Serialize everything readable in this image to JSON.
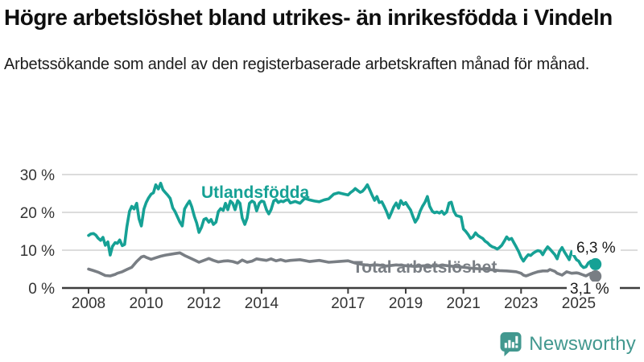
{
  "header": {
    "title": "Högre arbetslöshet bland utrikes- än inrikesfödda i Vindeln",
    "subtitle": "Arbetssökande som andel av den registerbaserade arbetskraften månad för månad."
  },
  "colors": {
    "foreign_born_line": "#16a195",
    "total_line": "#797e84",
    "gridline": "#dcdcdc",
    "axis": "#3d3d3d",
    "end_label_text": "#1a1a1a",
    "brand_teal": "#42988f"
  },
  "chart_data": {
    "type": "line",
    "title": "",
    "xlabel": "",
    "ylabel": "",
    "unit": "%",
    "grid": "horizontal",
    "legend": "inline-labels",
    "ylim": [
      0,
      30
    ],
    "y_axis": {
      "tick_values": [
        0,
        10,
        20,
        30
      ],
      "tick_labels": [
        "0 %",
        "10 %",
        "20 %",
        "30 %"
      ]
    },
    "x_axis": {
      "tick_years": [
        2008,
        2010,
        2012,
        2014,
        2017,
        2019,
        2021,
        2023,
        2025
      ],
      "tick_labels": [
        "2008",
        "2010",
        "2012",
        "2014",
        "2017",
        "2019",
        "2021",
        "2023",
        "2025"
      ],
      "data_start": 2008.0,
      "data_end": 2025.58
    },
    "series": [
      {
        "name": "Utlandsfödda",
        "color": "#16a195",
        "end_label": "6,3 %",
        "end_value": 6.3,
        "points": [
          [
            2008.0,
            13.9
          ],
          [
            2008.08,
            14.3
          ],
          [
            2008.17,
            14.4
          ],
          [
            2008.25,
            14.0
          ],
          [
            2008.33,
            13.2
          ],
          [
            2008.42,
            12.6
          ],
          [
            2008.5,
            13.4
          ],
          [
            2008.58,
            11.3
          ],
          [
            2008.67,
            12.2
          ],
          [
            2008.75,
            8.7
          ],
          [
            2008.83,
            11.0
          ],
          [
            2008.92,
            12.0
          ],
          [
            2009.0,
            11.8
          ],
          [
            2009.08,
            12.7
          ],
          [
            2009.17,
            11.2
          ],
          [
            2009.25,
            11.5
          ],
          [
            2009.33,
            16.2
          ],
          [
            2009.42,
            20.3
          ],
          [
            2009.5,
            21.6
          ],
          [
            2009.58,
            20.9
          ],
          [
            2009.67,
            22.4
          ],
          [
            2009.75,
            18.3
          ],
          [
            2009.83,
            16.4
          ],
          [
            2009.92,
            20.9
          ],
          [
            2010.0,
            22.6
          ],
          [
            2010.08,
            23.8
          ],
          [
            2010.17,
            24.8
          ],
          [
            2010.25,
            25.2
          ],
          [
            2010.33,
            27.3
          ],
          [
            2010.42,
            26.2
          ],
          [
            2010.5,
            27.7
          ],
          [
            2010.58,
            26.0
          ],
          [
            2010.67,
            25.2
          ],
          [
            2010.75,
            24.5
          ],
          [
            2010.83,
            23.7
          ],
          [
            2010.92,
            21.2
          ],
          [
            2011.0,
            20.2
          ],
          [
            2011.08,
            18.9
          ],
          [
            2011.17,
            17.4
          ],
          [
            2011.25,
            16.4
          ],
          [
            2011.33,
            20.9
          ],
          [
            2011.42,
            22.1
          ],
          [
            2011.5,
            23.0
          ],
          [
            2011.58,
            21.5
          ],
          [
            2011.67,
            18.9
          ],
          [
            2011.75,
            17.2
          ],
          [
            2011.83,
            14.7
          ],
          [
            2011.92,
            16.1
          ],
          [
            2012.0,
            18.1
          ],
          [
            2012.08,
            18.4
          ],
          [
            2012.17,
            17.4
          ],
          [
            2012.25,
            18.1
          ],
          [
            2012.33,
            16.8
          ],
          [
            2012.42,
            17.4
          ],
          [
            2012.5,
            20.2
          ],
          [
            2012.58,
            21.0
          ],
          [
            2012.67,
            20.5
          ],
          [
            2012.75,
            22.4
          ],
          [
            2012.83,
            20.7
          ],
          [
            2012.92,
            23.0
          ],
          [
            2013.0,
            22.4
          ],
          [
            2013.08,
            20.7
          ],
          [
            2013.17,
            23.1
          ],
          [
            2013.25,
            22.4
          ],
          [
            2013.33,
            18.5
          ],
          [
            2013.42,
            16.8
          ],
          [
            2013.5,
            18.5
          ],
          [
            2013.58,
            22.4
          ],
          [
            2013.67,
            23.0
          ],
          [
            2013.75,
            22.6
          ],
          [
            2013.83,
            20.4
          ],
          [
            2013.92,
            22.4
          ],
          [
            2014.0,
            23.0
          ],
          [
            2014.08,
            22.8
          ],
          [
            2014.17,
            20.7
          ],
          [
            2014.25,
            19.6
          ],
          [
            2014.33,
            20.7
          ],
          [
            2014.42,
            23.0
          ],
          [
            2014.5,
            23.4
          ],
          [
            2014.58,
            22.6
          ],
          [
            2014.67,
            23.0
          ],
          [
            2014.75,
            22.8
          ],
          [
            2014.83,
            23.2
          ],
          [
            2014.92,
            23.4
          ],
          [
            2015.0,
            22.5
          ],
          [
            2015.17,
            22.9
          ],
          [
            2015.33,
            22.4
          ],
          [
            2015.5,
            23.7
          ],
          [
            2015.67,
            23.3
          ],
          [
            2015.83,
            23.0
          ],
          [
            2016.0,
            22.8
          ],
          [
            2016.17,
            23.3
          ],
          [
            2016.33,
            23.6
          ],
          [
            2016.5,
            24.8
          ],
          [
            2016.67,
            25.2
          ],
          [
            2016.83,
            24.9
          ],
          [
            2017.0,
            24.6
          ],
          [
            2017.08,
            25.2
          ],
          [
            2017.17,
            25.7
          ],
          [
            2017.25,
            26.3
          ],
          [
            2017.33,
            25.8
          ],
          [
            2017.42,
            25.3
          ],
          [
            2017.5,
            25.6
          ],
          [
            2017.58,
            26.3
          ],
          [
            2017.67,
            27.3
          ],
          [
            2017.75,
            26.0
          ],
          [
            2017.83,
            24.6
          ],
          [
            2017.92,
            23.2
          ],
          [
            2018.0,
            24.2
          ],
          [
            2018.08,
            22.6
          ],
          [
            2018.17,
            22.8
          ],
          [
            2018.25,
            21.6
          ],
          [
            2018.33,
            20.3
          ],
          [
            2018.42,
            18.5
          ],
          [
            2018.5,
            19.9
          ],
          [
            2018.58,
            21.4
          ],
          [
            2018.67,
            22.5
          ],
          [
            2018.75,
            21.1
          ],
          [
            2018.83,
            23.1
          ],
          [
            2018.92,
            22.1
          ],
          [
            2019.0,
            22.6
          ],
          [
            2019.08,
            21.6
          ],
          [
            2019.17,
            20.6
          ],
          [
            2019.25,
            18.9
          ],
          [
            2019.33,
            17.4
          ],
          [
            2019.42,
            18.5
          ],
          [
            2019.5,
            20.3
          ],
          [
            2019.58,
            21.6
          ],
          [
            2019.67,
            22.7
          ],
          [
            2019.75,
            24.2
          ],
          [
            2019.83,
            21.6
          ],
          [
            2019.92,
            20.3
          ],
          [
            2020.0,
            19.9
          ],
          [
            2020.08,
            20.1
          ],
          [
            2020.17,
            19.8
          ],
          [
            2020.25,
            20.3
          ],
          [
            2020.33,
            19.5
          ],
          [
            2020.42,
            20.1
          ],
          [
            2020.5,
            22.5
          ],
          [
            2020.58,
            22.7
          ],
          [
            2020.67,
            20.3
          ],
          [
            2020.75,
            19.2
          ],
          [
            2020.83,
            19.0
          ],
          [
            2020.92,
            18.8
          ],
          [
            2021.0,
            15.6
          ],
          [
            2021.08,
            15.0
          ],
          [
            2021.17,
            14.1
          ],
          [
            2021.25,
            13.1
          ],
          [
            2021.33,
            13.5
          ],
          [
            2021.42,
            14.6
          ],
          [
            2021.5,
            13.9
          ],
          [
            2021.58,
            13.5
          ],
          [
            2021.67,
            13.1
          ],
          [
            2021.75,
            12.4
          ],
          [
            2021.83,
            12.0
          ],
          [
            2021.92,
            11.3
          ],
          [
            2022.0,
            10.9
          ],
          [
            2022.08,
            10.7
          ],
          [
            2022.17,
            10.3
          ],
          [
            2022.25,
            10.7
          ],
          [
            2022.33,
            11.3
          ],
          [
            2022.42,
            12.4
          ],
          [
            2022.5,
            13.5
          ],
          [
            2022.58,
            12.8
          ],
          [
            2022.67,
            13.1
          ],
          [
            2022.75,
            12.0
          ],
          [
            2022.83,
            10.9
          ],
          [
            2022.92,
            9.6
          ],
          [
            2023.0,
            8.1
          ],
          [
            2023.08,
            7.1
          ],
          [
            2023.17,
            8.1
          ],
          [
            2023.25,
            8.8
          ],
          [
            2023.33,
            8.6
          ],
          [
            2023.42,
            9.2
          ],
          [
            2023.5,
            9.6
          ],
          [
            2023.58,
            9.9
          ],
          [
            2023.67,
            9.7
          ],
          [
            2023.75,
            8.8
          ],
          [
            2023.83,
            9.9
          ],
          [
            2023.92,
            10.9
          ],
          [
            2024.0,
            10.3
          ],
          [
            2024.08,
            9.6
          ],
          [
            2024.17,
            8.8
          ],
          [
            2024.25,
            7.7
          ],
          [
            2024.33,
            9.6
          ],
          [
            2024.42,
            10.7
          ],
          [
            2024.5,
            9.6
          ],
          [
            2024.58,
            8.6
          ],
          [
            2024.67,
            7.5
          ],
          [
            2024.75,
            9.6
          ],
          [
            2024.83,
            8.6
          ],
          [
            2024.92,
            7.5
          ],
          [
            2025.0,
            7.1
          ],
          [
            2025.08,
            6.0
          ],
          [
            2025.17,
            5.4
          ],
          [
            2025.25,
            5.6
          ],
          [
            2025.33,
            6.6
          ],
          [
            2025.42,
            7.1
          ],
          [
            2025.5,
            6.6
          ],
          [
            2025.58,
            6.3
          ]
        ]
      },
      {
        "name": "Total arbetslöshet",
        "color": "#797e84",
        "end_label": "3,1 %",
        "end_value": 3.1,
        "points": [
          [
            2008.0,
            5.0
          ],
          [
            2008.17,
            4.6
          ],
          [
            2008.33,
            4.2
          ],
          [
            2008.5,
            3.6
          ],
          [
            2008.58,
            3.3
          ],
          [
            2008.75,
            3.2
          ],
          [
            2008.92,
            3.6
          ],
          [
            2009.0,
            3.9
          ],
          [
            2009.17,
            4.3
          ],
          [
            2009.33,
            4.9
          ],
          [
            2009.5,
            5.5
          ],
          [
            2009.67,
            7.0
          ],
          [
            2009.83,
            8.2
          ],
          [
            2009.92,
            8.4
          ],
          [
            2010.0,
            8.1
          ],
          [
            2010.17,
            7.6
          ],
          [
            2010.33,
            8.0
          ],
          [
            2010.5,
            8.4
          ],
          [
            2010.67,
            8.7
          ],
          [
            2010.83,
            8.9
          ],
          [
            2011.0,
            9.1
          ],
          [
            2011.17,
            9.3
          ],
          [
            2011.33,
            8.6
          ],
          [
            2011.5,
            8.0
          ],
          [
            2011.67,
            7.4
          ],
          [
            2011.83,
            6.8
          ],
          [
            2012.0,
            7.3
          ],
          [
            2012.17,
            7.8
          ],
          [
            2012.33,
            7.3
          ],
          [
            2012.5,
            6.9
          ],
          [
            2012.67,
            7.1
          ],
          [
            2012.83,
            7.2
          ],
          [
            2013.0,
            7.0
          ],
          [
            2013.17,
            6.6
          ],
          [
            2013.33,
            7.4
          ],
          [
            2013.5,
            6.8
          ],
          [
            2013.67,
            7.1
          ],
          [
            2013.83,
            7.7
          ],
          [
            2014.0,
            7.5
          ],
          [
            2014.17,
            7.3
          ],
          [
            2014.33,
            7.7
          ],
          [
            2014.5,
            7.2
          ],
          [
            2014.67,
            7.5
          ],
          [
            2014.83,
            7.1
          ],
          [
            2015.0,
            7.3
          ],
          [
            2015.33,
            7.5
          ],
          [
            2015.67,
            7.0
          ],
          [
            2016.0,
            7.3
          ],
          [
            2016.33,
            6.8
          ],
          [
            2016.67,
            7.0
          ],
          [
            2017.0,
            7.2
          ],
          [
            2017.25,
            6.6
          ],
          [
            2017.5,
            6.2
          ],
          [
            2017.75,
            6.0
          ],
          [
            2018.0,
            6.1
          ],
          [
            2018.33,
            5.8
          ],
          [
            2018.67,
            6.1
          ],
          [
            2019.0,
            5.9
          ],
          [
            2019.33,
            5.7
          ],
          [
            2019.67,
            5.9
          ],
          [
            2020.0,
            5.8
          ],
          [
            2020.33,
            6.0
          ],
          [
            2020.67,
            5.7
          ],
          [
            2021.0,
            5.5
          ],
          [
            2021.33,
            5.2
          ],
          [
            2021.67,
            5.0
          ],
          [
            2022.0,
            4.8
          ],
          [
            2022.25,
            4.6
          ],
          [
            2022.5,
            4.5
          ],
          [
            2022.67,
            4.4
          ],
          [
            2022.83,
            4.3
          ],
          [
            2023.0,
            3.9
          ],
          [
            2023.08,
            3.4
          ],
          [
            2023.17,
            3.2
          ],
          [
            2023.25,
            3.4
          ],
          [
            2023.42,
            3.9
          ],
          [
            2023.58,
            4.3
          ],
          [
            2023.75,
            4.5
          ],
          [
            2023.92,
            4.5
          ],
          [
            2024.0,
            4.9
          ],
          [
            2024.17,
            4.4
          ],
          [
            2024.25,
            3.9
          ],
          [
            2024.42,
            3.4
          ],
          [
            2024.58,
            4.3
          ],
          [
            2024.75,
            3.9
          ],
          [
            2024.92,
            4.0
          ],
          [
            2025.0,
            3.9
          ],
          [
            2025.17,
            3.4
          ],
          [
            2025.25,
            3.2
          ],
          [
            2025.42,
            3.9
          ],
          [
            2025.5,
            3.5
          ],
          [
            2025.58,
            3.1
          ]
        ]
      }
    ]
  },
  "footer": {
    "brand": "Newsworthy"
  }
}
